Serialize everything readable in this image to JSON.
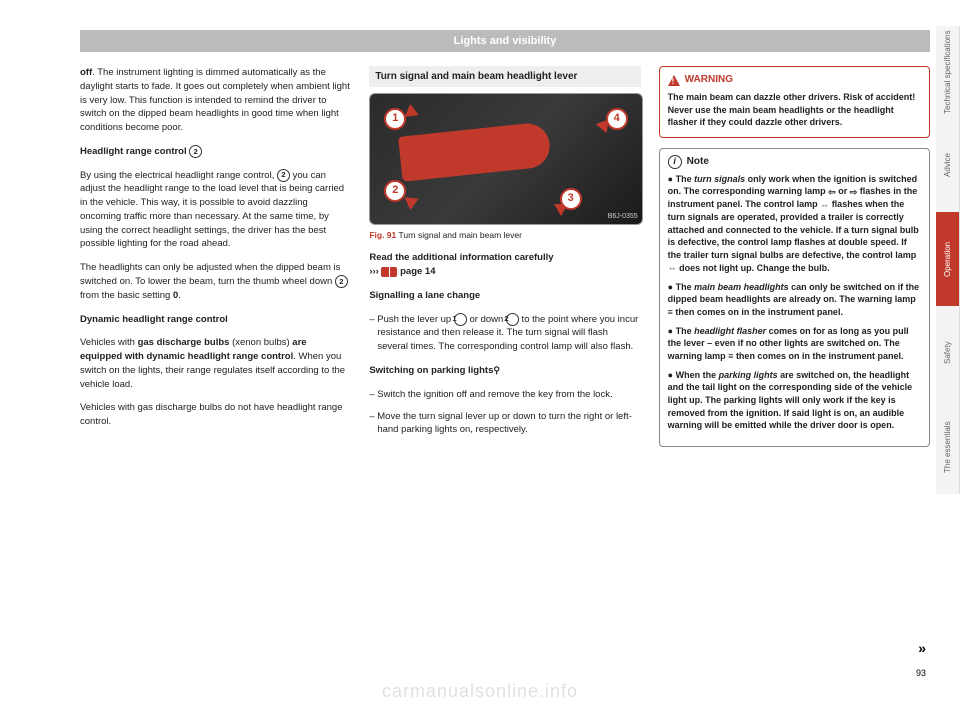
{
  "header": {
    "title": "Lights and visibility"
  },
  "col1": {
    "p1a": "off",
    "p1b": ". The instrument lighting is dimmed automatically as the daylight starts to fade. It goes out completely when ambient light is very low. This function is intended to remind the driver to switch on the dipped beam headlights in good time when light conditions become poor.",
    "h1a": "Headlight range control ",
    "h1_num": "2",
    "p2a": "By using the electrical headlight range control, ",
    "p2_num": "2",
    "p2b": " you can adjust the headlight range to the load level that is being carried in the vehicle. This way, it is possible to avoid dazzling oncoming traffic more than necessary. At the same time, by using the correct headlight settings, the driver has the best possible lighting for the road ahead.",
    "p3a": "The headlights can only be adjusted when the dipped beam is switched on. To lower the beam, turn the thumb wheel down ",
    "p3_num": "2",
    "p3b": " from the basic setting ",
    "p3c": "0",
    "p3d": ".",
    "h2": "Dynamic headlight range control",
    "p4a": "Vehicles with ",
    "p4b": "gas discharge bulbs",
    "p4c": " (xenon bulbs) ",
    "p4d": "are equipped with dynamic headlight range control",
    "p4e": ". When you switch on the lights, their range regulates itself according to the vehicle load.",
    "p5": "Vehicles with gas discharge bulbs do not have headlight range control."
  },
  "col2": {
    "subheading": "Turn signal and main beam headlight lever",
    "markers": {
      "m1": "1",
      "m2": "2",
      "m3": "3",
      "m4": "4"
    },
    "fig_inside": "B6J-0355",
    "fig_num": "Fig. 91",
    "fig_text": "  Turn signal and main beam lever",
    "read_a": "Read the additional information carefully",
    "read_b": "›››",
    "read_c": " page 14",
    "h1": "Signalling a lane change",
    "li1a": "Push the lever up ",
    "li1_n1": "1",
    "li1b": " or down ",
    "li1_n2": "2",
    "li1c": " to the point where you incur resistance and then release it. The turn signal will flash several times. The corresponding control lamp will also flash.",
    "h2": "Switching on parking lights",
    "h2_sym": "⚲",
    "li2": "Switch the ignition off and remove the key from the lock.",
    "li3": "Move the turn signal lever up or down to turn the right or left-hand parking lights on, respectively."
  },
  "col3": {
    "warn_title": "WARNING",
    "warn_body": "The main beam can dazzle other drivers. Risk of accident! Never use the main beam headlights or the headlight flasher if they could dazzle other drivers.",
    "note_title": "Note",
    "n1a": "● The ",
    "n1b": "turn signals",
    "n1c": " only work when the ignition is switched on. The corresponding warning lamp ",
    "n1_sym1": "⇦",
    "n1d": " or ",
    "n1_sym2": "⇨",
    "n1e": " flashes in the instrument panel. The control lamp ",
    "n1_sym3": "⇔",
    "n1f": " flashes when the turn signals are operated, provided a trailer is correctly attached and connected to the vehicle. If a turn signal bulb is defective, the control lamp flashes at double speed. If the trailer turn signal bulbs are defective, the control lamp ",
    "n1_sym4": "⇔",
    "n1g": " does not light up. Change the bulb.",
    "n2a": "● The ",
    "n2b": "main beam headlights",
    "n2c": " can only be switched on if the dipped beam headlights are already on. The warning lamp ",
    "n2_sym": "≡",
    "n2d": " then comes on in the instrument panel.",
    "n3a": "● The ",
    "n3b": "headlight flasher",
    "n3c": " comes on for as long as you pull the lever – even if no other lights are switched on. The warning lamp ",
    "n3_sym": "≡",
    "n3d": " then comes on in the instrument panel.",
    "n4a": "● When the ",
    "n4b": "parking lights",
    "n4c": " are switched on, the headlight and the tail light on the corresponding side of the vehicle light up. The parking lights will only work if the key is removed from the ignition. If said light is on, an audible warning will be emitted while the driver door is open."
  },
  "tabs": {
    "t1": "Technical specifications",
    "h1": 92,
    "t2": "Advice",
    "h2": 94,
    "t3": "Operation",
    "h3": 94,
    "t4": "Safety",
    "h4": 94,
    "t5": "The essentials",
    "h5": 94,
    "active_bg": "#c0392b"
  },
  "continuation": "»",
  "page_number": "93",
  "watermark": "carmanualsonline.info"
}
